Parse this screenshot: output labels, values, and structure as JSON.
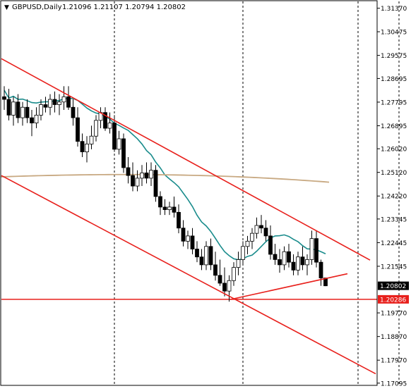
{
  "header": {
    "symbol_text": "GBPUSD,Daily",
    "ohlc_text": "1.21096 1.21107 1.20794 1.20802"
  },
  "colors": {
    "background": "#ffffff",
    "frame": "#000000",
    "grid": "#000000",
    "bull_body": "#ffffff",
    "bear_body": "#000000",
    "candle_outline": "#000000",
    "ma_fast": "#1a8c8c",
    "ma_slow": "#c8a982",
    "trendline": "#e8201c",
    "price_tag_current": "#000000",
    "price_tag_level": "#e8201c"
  },
  "chart_data": {
    "type": "candlestick",
    "title": "GBPUSD,Daily",
    "ohlc_last": {
      "open": 1.21096,
      "high": 1.21107,
      "low": 1.20794,
      "close": 1.20802
    },
    "y_tick_labels": [
      "1.31370",
      "1.30475",
      "1.29575",
      "1.28695",
      "1.27795",
      "1.26895",
      "1.26020",
      "1.25120",
      "1.24220",
      "1.23345",
      "1.22445",
      "1.21545",
      "1.20802",
      "1.20286",
      "1.19770",
      "1.18870",
      "1.17970",
      "1.17095"
    ],
    "y_ticks": [
      1.3137,
      1.30475,
      1.29575,
      1.28695,
      1.27795,
      1.26895,
      1.2602,
      1.2512,
      1.2422,
      1.23345,
      1.22445,
      1.21545,
      1.1977,
      1.1887,
      1.1797,
      1.17095
    ],
    "ylim": [
      1.1701,
      1.3163
    ],
    "current_price": {
      "label": "1.20802",
      "value": 1.20802
    },
    "horizontal_level": {
      "label": "1.20286",
      "value": 1.20286
    },
    "vertical_separators_bar_index": [
      24,
      52,
      86
    ],
    "candles": [
      [
        1.28,
        1.284,
        1.275,
        1.279
      ],
      [
        1.279,
        1.283,
        1.271,
        1.273
      ],
      [
        1.273,
        1.28,
        1.269,
        1.278
      ],
      [
        1.278,
        1.281,
        1.27,
        1.272
      ],
      [
        1.272,
        1.278,
        1.269,
        1.276
      ],
      [
        1.276,
        1.279,
        1.27,
        1.272
      ],
      [
        1.272,
        1.275,
        1.265,
        1.27
      ],
      [
        1.27,
        1.276,
        1.268,
        1.273
      ],
      [
        1.273,
        1.279,
        1.271,
        1.277
      ],
      [
        1.277,
        1.28,
        1.274,
        1.276
      ],
      [
        1.276,
        1.281,
        1.273,
        1.279
      ],
      [
        1.279,
        1.282,
        1.274,
        1.277
      ],
      [
        1.277,
        1.281,
        1.273,
        1.278
      ],
      [
        1.278,
        1.284,
        1.275,
        1.28
      ],
      [
        1.28,
        1.284,
        1.275,
        1.276
      ],
      [
        1.276,
        1.279,
        1.269,
        1.272
      ],
      [
        1.272,
        1.276,
        1.261,
        1.263
      ],
      [
        1.263,
        1.266,
        1.257,
        1.259
      ],
      [
        1.259,
        1.265,
        1.255,
        1.262
      ],
      [
        1.262,
        1.269,
        1.26,
        1.265
      ],
      [
        1.265,
        1.273,
        1.263,
        1.271
      ],
      [
        1.271,
        1.276,
        1.268,
        1.274
      ],
      [
        1.274,
        1.276,
        1.267,
        1.268
      ],
      [
        1.268,
        1.274,
        1.266,
        1.27
      ],
      [
        1.27,
        1.273,
        1.259,
        1.26
      ],
      [
        1.26,
        1.267,
        1.258,
        1.264
      ],
      [
        1.264,
        1.266,
        1.251,
        1.253
      ],
      [
        1.253,
        1.257,
        1.247,
        1.25
      ],
      [
        1.25,
        1.255,
        1.244,
        1.246
      ],
      [
        1.246,
        1.252,
        1.244,
        1.249
      ],
      [
        1.249,
        1.254,
        1.246,
        1.251
      ],
      [
        1.251,
        1.255,
        1.247,
        1.249
      ],
      [
        1.249,
        1.255,
        1.246,
        1.252
      ],
      [
        1.252,
        1.254,
        1.24,
        1.242
      ],
      [
        1.242,
        1.244,
        1.235,
        1.238
      ],
      [
        1.238,
        1.241,
        1.235,
        1.237
      ],
      [
        1.237,
        1.24,
        1.235,
        1.238
      ],
      [
        1.238,
        1.242,
        1.234,
        1.236
      ],
      [
        1.236,
        1.239,
        1.228,
        1.23
      ],
      [
        1.23,
        1.233,
        1.223,
        1.225
      ],
      [
        1.225,
        1.229,
        1.222,
        1.227
      ],
      [
        1.227,
        1.23,
        1.22,
        1.222
      ],
      [
        1.222,
        1.225,
        1.217,
        1.219
      ],
      [
        1.219,
        1.222,
        1.214,
        1.216
      ],
      [
        1.216,
        1.225,
        1.214,
        1.223
      ],
      [
        1.223,
        1.226,
        1.214,
        1.216
      ],
      [
        1.216,
        1.221,
        1.21,
        1.212
      ],
      [
        1.212,
        1.218,
        1.208,
        1.209
      ],
      [
        1.209,
        1.215,
        1.204,
        1.206
      ],
      [
        1.206,
        1.212,
        1.202,
        1.21
      ],
      [
        1.21,
        1.217,
        1.208,
        1.215
      ],
      [
        1.215,
        1.221,
        1.212,
        1.218
      ],
      [
        1.218,
        1.225,
        1.216,
        1.223
      ],
      [
        1.223,
        1.227,
        1.22,
        1.225
      ],
      [
        1.225,
        1.23,
        1.222,
        1.228
      ],
      [
        1.228,
        1.234,
        1.226,
        1.231
      ],
      [
        1.231,
        1.235,
        1.228,
        1.23
      ],
      [
        1.23,
        1.233,
        1.225,
        1.227
      ],
      [
        1.227,
        1.231,
        1.218,
        1.22
      ],
      [
        1.22,
        1.224,
        1.216,
        1.218
      ],
      [
        1.218,
        1.222,
        1.213,
        1.216
      ],
      [
        1.216,
        1.223,
        1.214,
        1.221
      ],
      [
        1.221,
        1.224,
        1.215,
        1.217
      ],
      [
        1.217,
        1.22,
        1.212,
        1.214
      ],
      [
        1.214,
        1.221,
        1.212,
        1.219
      ],
      [
        1.219,
        1.223,
        1.214,
        1.216
      ],
      [
        1.216,
        1.22,
        1.212,
        1.218
      ],
      [
        1.218,
        1.229,
        1.216,
        1.226
      ],
      [
        1.226,
        1.229,
        1.215,
        1.217
      ],
      [
        1.217,
        1.218,
        1.208,
        1.211
      ],
      [
        1.211,
        1.2111,
        1.2079,
        1.208
      ]
    ]
  }
}
